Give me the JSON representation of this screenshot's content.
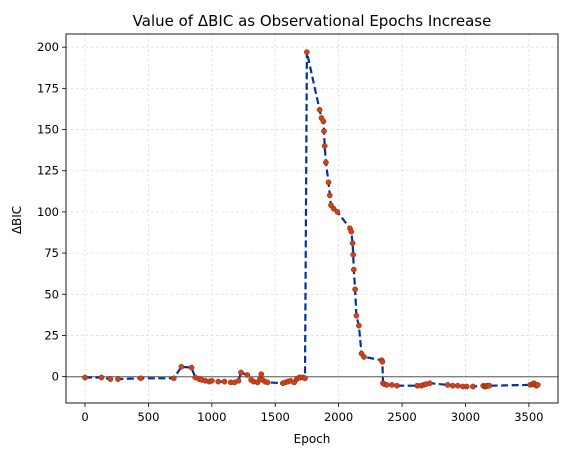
{
  "chart_data": {
    "type": "scatter",
    "title": "Value of ΔBIC as Observational Epochs Increase",
    "xlabel": "Epoch",
    "ylabel": "ΔBIC",
    "xlim": [
      -150,
      3730
    ],
    "ylim": [
      -16,
      208
    ],
    "xticks": [
      0,
      500,
      1000,
      1500,
      2000,
      2500,
      3000,
      3500
    ],
    "yticks": [
      0,
      25,
      50,
      75,
      100,
      125,
      150,
      175,
      200
    ],
    "xtick_labels": [
      "0",
      "500",
      "1000",
      "1500",
      "2000",
      "2500",
      "3000",
      "3500"
    ],
    "ytick_labels": [
      "0",
      "25",
      "50",
      "75",
      "100",
      "125",
      "150",
      "175",
      "200"
    ],
    "grid": true,
    "reference_line": 0,
    "line_color": "#003399",
    "marker_color": "#d2421a",
    "series": [
      {
        "name": "ΔBIC",
        "x": [
          0,
          130,
          200,
          260,
          440,
          700,
          760,
          840,
          870,
          900,
          920,
          950,
          980,
          1000,
          1050,
          1100,
          1150,
          1180,
          1210,
          1230,
          1280,
          1310,
          1330,
          1360,
          1380,
          1390,
          1400,
          1420,
          1440,
          1560,
          1580,
          1600,
          1620,
          1650,
          1670,
          1690,
          1700,
          1720,
          1735,
          1750,
          1850,
          1865,
          1880,
          1885,
          1890,
          1900,
          1920,
          1930,
          1940,
          1960,
          1990,
          2090,
          2100,
          2110,
          2115,
          2120,
          2130,
          2140,
          2160,
          2180,
          2200,
          2340,
          2345,
          2350,
          2360,
          2380,
          2420,
          2460,
          2620,
          2650,
          2670,
          2690,
          2720,
          2860,
          2900,
          2940,
          2980,
          3010,
          3060,
          3140,
          3150,
          3160,
          3170,
          3180,
          3190,
          3510,
          3530,
          3540,
          3550,
          3560,
          3570
        ],
        "y": [
          -0.5,
          -0.5,
          -1.5,
          -1.5,
          -1,
          -1,
          6,
          5.5,
          -0.5,
          -1.5,
          -2,
          -2.5,
          -3,
          -2.5,
          -3,
          -3,
          -3.5,
          -3.5,
          -2.5,
          2.5,
          1,
          -2,
          -3,
          -3.5,
          -1.5,
          1.5,
          -2,
          -3,
          -3.5,
          -4,
          -3.5,
          -3,
          -2.5,
          -3.5,
          -1.5,
          -0.5,
          -0.5,
          -0.5,
          -1,
          197,
          162,
          157,
          155,
          149,
          140,
          130,
          118,
          110,
          104,
          102,
          100,
          90,
          88,
          81,
          74,
          65,
          53,
          37,
          31,
          14,
          12,
          10,
          9,
          -4,
          -4.5,
          -5,
          -5,
          -5.5,
          -5.5,
          -5.5,
          -5,
          -4.5,
          -4,
          -5,
          -5.5,
          -5.5,
          -6,
          -6,
          -6,
          -5.5,
          -6,
          -6,
          -5.5,
          -5.5,
          -5.5,
          -5,
          -4.5,
          -4,
          -5,
          -5.5,
          -5
        ]
      }
    ]
  }
}
